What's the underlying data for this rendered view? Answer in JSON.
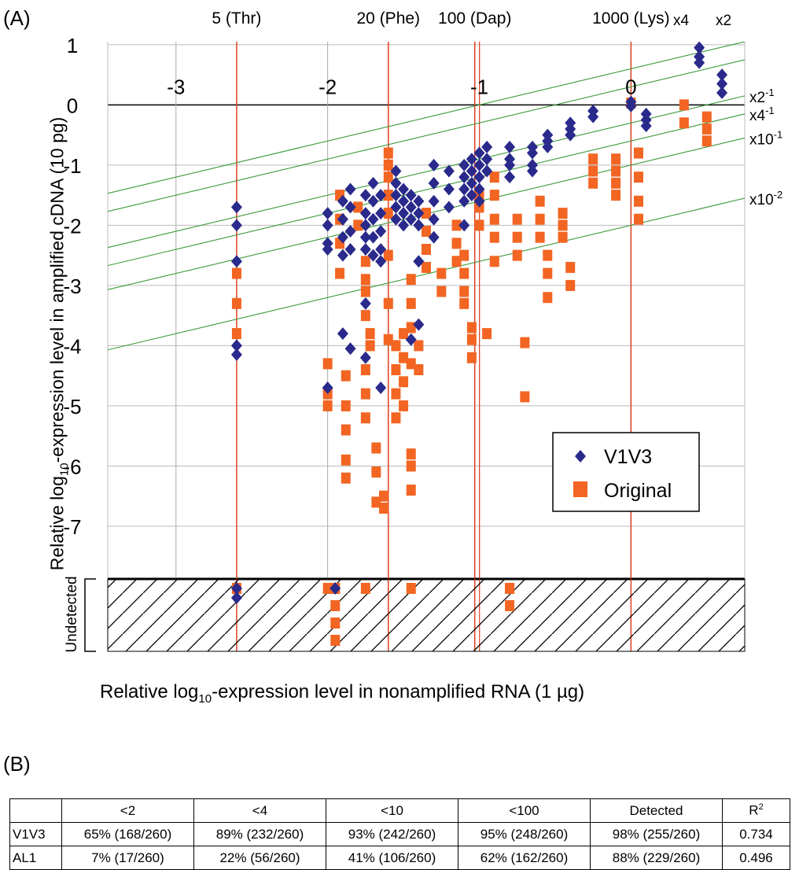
{
  "panel_a_label": "(A)",
  "panel_b_label": "(B)",
  "ylabel_text": "Relative log",
  "ylabel_sub": "10",
  "ylabel_rest": "-expression level in amplified cDNA (10 pg)",
  "xlabel_text": "Relative log",
  "xlabel_sub": "10",
  "xlabel_rest": "-expression level in nonamplified RNA (1 µg)",
  "undetected_label": "Undetected",
  "colors": {
    "v1v3": "#2a2a8c",
    "original": "#f26522",
    "guide": "#3a9a3a",
    "marker_line": "#e04020"
  },
  "chart_data": {
    "type": "scatter",
    "xlim": [
      -3.45,
      0.75
    ],
    "ylim": [
      -7.85,
      1.05
    ],
    "x_ticks": [
      -3,
      -2,
      -1,
      0
    ],
    "y_ticks": [
      1,
      0,
      -1,
      -2,
      -3,
      -4,
      -5,
      -6,
      -7
    ],
    "grid": true,
    "spike_markers": [
      {
        "label": "5 (Thr)",
        "x": -2.6
      },
      {
        "label": "20 (Phe)",
        "x": -1.6
      },
      {
        "label": "100 (Dap)",
        "x": -1.03
      },
      {
        "label": "1000 (Lys)",
        "x": 0
      }
    ],
    "guide_lines": [
      {
        "label": "x4",
        "intercept": 0.6
      },
      {
        "label": "x2",
        "intercept": 0.3
      },
      {
        "label": "x2",
        "sup": "-1",
        "intercept": -0.3
      },
      {
        "label": "x4",
        "sup": "-1",
        "intercept": -0.6
      },
      {
        "label": "x10",
        "sup": "-1",
        "intercept": -1.0
      },
      {
        "label": "x10",
        "sup": "-2",
        "intercept": -2.0
      }
    ],
    "legend": {
      "position": "lower-right",
      "entries": [
        "V1V3",
        "Original"
      ]
    },
    "series": [
      {
        "name": "V1V3",
        "marker": "diamond",
        "points": [
          [
            -2.6,
            -1.7
          ],
          [
            -2.6,
            -2.0
          ],
          [
            -2.6,
            -2.6
          ],
          [
            -2.6,
            -4.0
          ],
          [
            -2.6,
            -4.15
          ],
          [
            -2.0,
            -1.8
          ],
          [
            -2.0,
            -2.0
          ],
          [
            -2.0,
            -2.3
          ],
          [
            -2.0,
            -2.4
          ],
          [
            -2.0,
            -4.7
          ],
          [
            -1.9,
            -1.6
          ],
          [
            -1.9,
            -1.9
          ],
          [
            -1.9,
            -2.2
          ],
          [
            -1.9,
            -2.5
          ],
          [
            -1.9,
            -3.8
          ],
          [
            -1.85,
            -1.4
          ],
          [
            -1.85,
            -1.7
          ],
          [
            -1.85,
            -2.1
          ],
          [
            -1.85,
            -2.4
          ],
          [
            -1.85,
            -4.05
          ],
          [
            -1.75,
            -1.5
          ],
          [
            -1.75,
            -1.8
          ],
          [
            -1.75,
            -2.0
          ],
          [
            -1.75,
            -2.2
          ],
          [
            -1.75,
            -2.4
          ],
          [
            -1.75,
            -3.3
          ],
          [
            -1.75,
            -4.2
          ],
          [
            -1.7,
            -1.3
          ],
          [
            -1.7,
            -1.6
          ],
          [
            -1.7,
            -1.9
          ],
          [
            -1.7,
            -2.2
          ],
          [
            -1.7,
            -2.5
          ],
          [
            -1.65,
            -1.5
          ],
          [
            -1.65,
            -1.8
          ],
          [
            -1.65,
            -2.1
          ],
          [
            -1.65,
            -2.4
          ],
          [
            -1.65,
            -2.6
          ],
          [
            -1.65,
            -4.7
          ],
          [
            -1.55,
            -1.1
          ],
          [
            -1.55,
            -1.3
          ],
          [
            -1.55,
            -1.5
          ],
          [
            -1.55,
            -1.7
          ],
          [
            -1.55,
            -1.9
          ],
          [
            -1.5,
            -1.4
          ],
          [
            -1.5,
            -1.6
          ],
          [
            -1.5,
            -1.8
          ],
          [
            -1.5,
            -2.0
          ],
          [
            -1.45,
            -1.5
          ],
          [
            -1.45,
            -1.7
          ],
          [
            -1.45,
            -1.9
          ],
          [
            -1.45,
            -3.9
          ],
          [
            -1.4,
            -1.6
          ],
          [
            -1.4,
            -1.8
          ],
          [
            -1.4,
            -2.0
          ],
          [
            -1.4,
            -2.6
          ],
          [
            -1.4,
            -3.65
          ],
          [
            -1.3,
            -1.0
          ],
          [
            -1.3,
            -1.3
          ],
          [
            -1.3,
            -1.6
          ],
          [
            -1.3,
            -1.9
          ],
          [
            -1.3,
            -2.2
          ],
          [
            -1.2,
            -1.1
          ],
          [
            -1.2,
            -1.4
          ],
          [
            -1.2,
            -1.7
          ],
          [
            -1.1,
            -1.0
          ],
          [
            -1.1,
            -1.2
          ],
          [
            -1.1,
            -1.4
          ],
          [
            -1.1,
            -1.6
          ],
          [
            -1.1,
            -2.0
          ],
          [
            -1.05,
            -0.9
          ],
          [
            -1.05,
            -1.1
          ],
          [
            -1.05,
            -1.3
          ],
          [
            -1.05,
            -1.5
          ],
          [
            -1.0,
            -0.8
          ],
          [
            -1.0,
            -1.0
          ],
          [
            -1.0,
            -1.2
          ],
          [
            -1.0,
            -1.4
          ],
          [
            -1.0,
            -1.6
          ],
          [
            -0.95,
            -0.7
          ],
          [
            -0.95,
            -0.9
          ],
          [
            -0.95,
            -1.1
          ],
          [
            -0.8,
            -0.7
          ],
          [
            -0.8,
            -0.9
          ],
          [
            -0.8,
            -1.0
          ],
          [
            -0.8,
            -1.2
          ],
          [
            -0.65,
            -0.7
          ],
          [
            -0.65,
            -0.8
          ],
          [
            -0.65,
            -1.0
          ],
          [
            -0.65,
            -1.1
          ],
          [
            -0.55,
            -0.5
          ],
          [
            -0.55,
            -0.6
          ],
          [
            -0.55,
            -0.7
          ],
          [
            -0.4,
            -0.3
          ],
          [
            -0.4,
            -0.4
          ],
          [
            -0.4,
            -0.5
          ],
          [
            -0.25,
            -0.1
          ],
          [
            -0.25,
            -0.2
          ],
          [
            0.0,
            0.05
          ],
          [
            0.0,
            -0.02
          ],
          [
            0.1,
            -0.15
          ],
          [
            0.1,
            -0.25
          ],
          [
            0.1,
            -0.35
          ],
          [
            0.45,
            0.95
          ],
          [
            0.45,
            0.8
          ],
          [
            0.45,
            0.7
          ],
          [
            0.6,
            0.5
          ],
          [
            0.6,
            0.35
          ],
          [
            0.6,
            0.2
          ]
        ],
        "undetected_x": [
          -2.6,
          -2.6,
          -1.95
        ]
      },
      {
        "name": "Original",
        "marker": "square",
        "points": [
          [
            -2.6,
            -2.8
          ],
          [
            -2.6,
            -3.3
          ],
          [
            -2.6,
            -3.8
          ],
          [
            -2.0,
            -4.3
          ],
          [
            -2.0,
            -4.8
          ],
          [
            -2.0,
            -5.0
          ],
          [
            -1.92,
            -1.5
          ],
          [
            -1.92,
            -1.9
          ],
          [
            -1.92,
            -2.3
          ],
          [
            -1.92,
            -2.8
          ],
          [
            -1.88,
            -4.5
          ],
          [
            -1.88,
            -5.0
          ],
          [
            -1.88,
            -5.4
          ],
          [
            -1.88,
            -5.9
          ],
          [
            -1.88,
            -6.2
          ],
          [
            -1.8,
            -1.7
          ],
          [
            -1.8,
            -2.0
          ],
          [
            -1.75,
            -2.6
          ],
          [
            -1.75,
            -2.9
          ],
          [
            -1.75,
            -3.1
          ],
          [
            -1.75,
            -3.5
          ],
          [
            -1.75,
            -4.4
          ],
          [
            -1.75,
            -4.8
          ],
          [
            -1.75,
            -5.2
          ],
          [
            -1.72,
            -3.8
          ],
          [
            -1.72,
            -4.0
          ],
          [
            -1.68,
            -5.7
          ],
          [
            -1.68,
            -6.1
          ],
          [
            -1.68,
            -6.6
          ],
          [
            -1.63,
            -6.5
          ],
          [
            -1.63,
            -6.7
          ],
          [
            -1.6,
            -0.8
          ],
          [
            -1.6,
            -1.0
          ],
          [
            -1.6,
            -1.2
          ],
          [
            -1.6,
            -1.5
          ],
          [
            -1.6,
            -1.8
          ],
          [
            -1.6,
            -2.5
          ],
          [
            -1.6,
            -3.3
          ],
          [
            -1.6,
            -3.9
          ],
          [
            -1.55,
            -4.0
          ],
          [
            -1.55,
            -4.4
          ],
          [
            -1.55,
            -4.8
          ],
          [
            -1.55,
            -5.2
          ],
          [
            -1.5,
            -3.8
          ],
          [
            -1.5,
            -4.2
          ],
          [
            -1.5,
            -4.6
          ],
          [
            -1.5,
            -5.0
          ],
          [
            -1.45,
            -2.9
          ],
          [
            -1.45,
            -3.3
          ],
          [
            -1.45,
            -3.7
          ],
          [
            -1.45,
            -4.3
          ],
          [
            -1.45,
            -5.8
          ],
          [
            -1.45,
            -6.0
          ],
          [
            -1.45,
            -6.4
          ],
          [
            -1.4,
            -4.0
          ],
          [
            -1.4,
            -4.4
          ],
          [
            -1.35,
            -1.8
          ],
          [
            -1.35,
            -2.1
          ],
          [
            -1.35,
            -2.4
          ],
          [
            -1.35,
            -2.7
          ],
          [
            -1.25,
            -2.8
          ],
          [
            -1.25,
            -3.1
          ],
          [
            -1.15,
            -2.0
          ],
          [
            -1.15,
            -2.3
          ],
          [
            -1.15,
            -2.6
          ],
          [
            -1.1,
            -2.5
          ],
          [
            -1.1,
            -2.8
          ],
          [
            -1.1,
            -3.1
          ],
          [
            -1.1,
            -3.3
          ],
          [
            -1.05,
            -3.7
          ],
          [
            -1.05,
            -3.9
          ],
          [
            -1.05,
            -4.2
          ],
          [
            -1.0,
            -1.5
          ],
          [
            -1.0,
            -1.7
          ],
          [
            -1.0,
            -2.0
          ],
          [
            -0.95,
            -3.8
          ],
          [
            -0.9,
            -1.2
          ],
          [
            -0.9,
            -1.5
          ],
          [
            -0.9,
            -1.9
          ],
          [
            -0.9,
            -2.2
          ],
          [
            -0.9,
            -2.6
          ],
          [
            -0.75,
            -1.9
          ],
          [
            -0.75,
            -2.2
          ],
          [
            -0.75,
            -2.5
          ],
          [
            -0.7,
            -3.95
          ],
          [
            -0.7,
            -4.85
          ],
          [
            -0.6,
            -1.6
          ],
          [
            -0.6,
            -1.9
          ],
          [
            -0.6,
            -2.2
          ],
          [
            -0.55,
            -2.5
          ],
          [
            -0.55,
            -2.8
          ],
          [
            -0.55,
            -3.2
          ],
          [
            -0.45,
            -1.8
          ],
          [
            -0.45,
            -2.0
          ],
          [
            -0.45,
            -2.2
          ],
          [
            -0.4,
            -2.7
          ],
          [
            -0.4,
            -3.0
          ],
          [
            -0.25,
            -0.9
          ],
          [
            -0.25,
            -1.1
          ],
          [
            -0.25,
            -1.3
          ],
          [
            -0.1,
            -0.9
          ],
          [
            -0.1,
            -1.1
          ],
          [
            -0.1,
            -1.3
          ],
          [
            -0.1,
            -1.5
          ],
          [
            0.0,
            0.03
          ],
          [
            0.05,
            -0.8
          ],
          [
            0.05,
            -1.2
          ],
          [
            0.05,
            -1.6
          ],
          [
            0.05,
            -1.9
          ],
          [
            0.35,
            0.0
          ],
          [
            0.35,
            -0.3
          ],
          [
            0.5,
            -0.2
          ],
          [
            0.5,
            -0.4
          ],
          [
            0.5,
            -0.6
          ]
        ],
        "undetected_x": [
          -2.6,
          -2.0,
          -1.95,
          -1.95,
          -1.75,
          -1.45,
          -0.8,
          -0.8
        ]
      }
    ]
  },
  "table": {
    "headers": [
      "",
      "<2",
      "<4",
      "<10",
      "<100",
      "Detected",
      "R"
    ],
    "header_last_sup": "2",
    "rows": [
      [
        "V1V3",
        "65% (168/260)",
        "89% (232/260)",
        "93% (242/260)",
        "95% (248/260)",
        "98% (255/260)",
        "0.734"
      ],
      [
        "AL1",
        "7% (17/260)",
        "22% (56/260)",
        "41% (106/260)",
        "62% (162/260)",
        "88% (229/260)",
        "0.496"
      ]
    ]
  }
}
